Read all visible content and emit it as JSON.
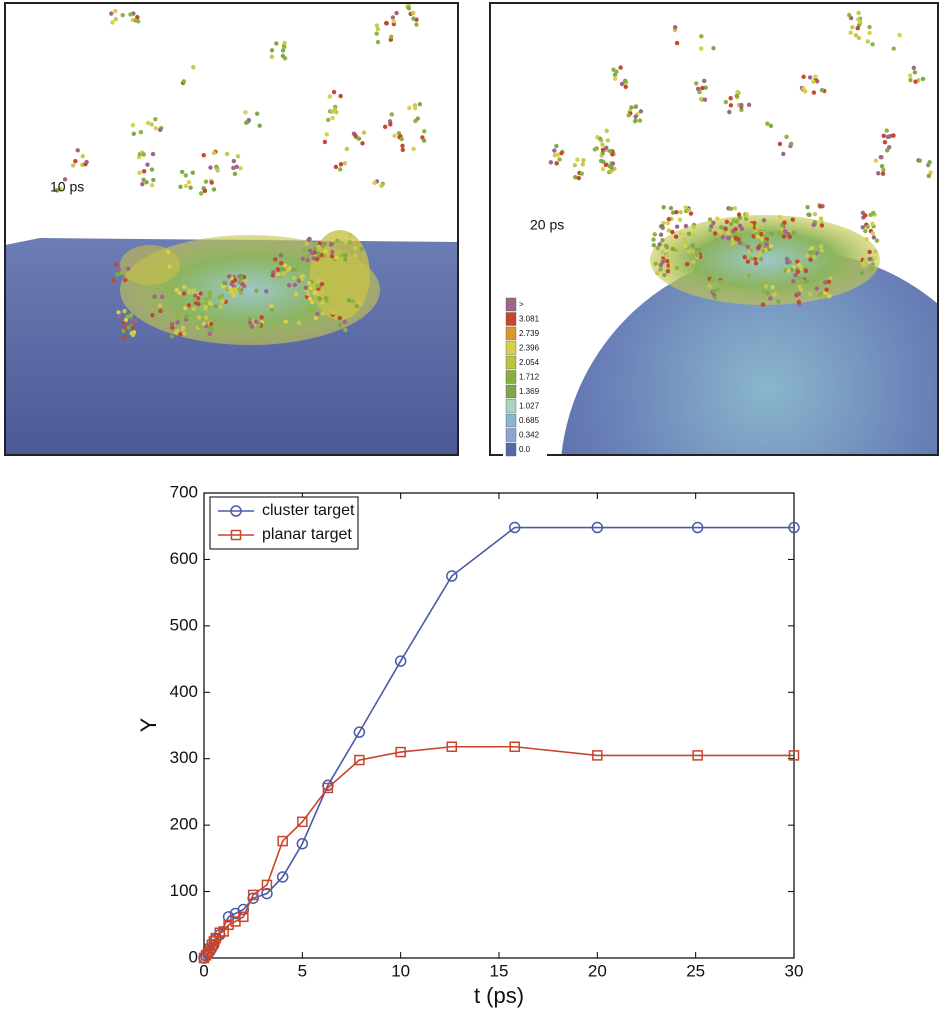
{
  "panels": [
    {
      "label": "10 ps"
    },
    {
      "label": "20 ps",
      "colorbar": {
        "labels": [
          ">",
          "3.081",
          "2.739",
          "2.396",
          "2.054",
          "1.712",
          "1.369",
          "1.027",
          "0.685",
          "0.342",
          "0.0"
        ],
        "colors": [
          "#a0668a",
          "#c2482e",
          "#d99a2a",
          "#d8cf4c",
          "#b8c43c",
          "#88b040",
          "#7fa84a",
          "#a8d4c0",
          "#86b6d2",
          "#8aa6d2",
          "#5668a8"
        ]
      }
    }
  ],
  "chart_data": {
    "type": "line",
    "xlabel": "t (ps)",
    "ylabel": "Y",
    "xlim": [
      0,
      30
    ],
    "ylim": [
      0,
      700
    ],
    "xticks": [
      0,
      5,
      10,
      15,
      20,
      25,
      30
    ],
    "yticks": [
      0,
      100,
      200,
      300,
      400,
      500,
      600,
      700
    ],
    "legend": "upper left",
    "series": [
      {
        "name": "cluster target",
        "color": "#4a5aa8",
        "marker": "circle",
        "x": [
          0,
          0.1,
          0.2,
          0.3,
          0.4,
          0.5,
          0.6,
          0.8,
          1.25,
          1.6,
          2,
          2.5,
          3.2,
          4,
          5,
          6.3,
          7.9,
          10,
          12.6,
          15.8,
          20,
          25.1,
          30
        ],
        "values": [
          0,
          3,
          6,
          10,
          15,
          20,
          28,
          35,
          62,
          67,
          73,
          90,
          97,
          122,
          172,
          260,
          340,
          447,
          575,
          648,
          648,
          648,
          648
        ]
      },
      {
        "name": "planar target",
        "color": "#c8452c",
        "marker": "square",
        "x": [
          0,
          0.1,
          0.2,
          0.3,
          0.4,
          0.5,
          0.6,
          0.8,
          1,
          1.25,
          1.6,
          2,
          2.5,
          3.2,
          4,
          5,
          6.3,
          7.9,
          10,
          12.6,
          15.8,
          20,
          25.1,
          30
        ],
        "values": [
          0,
          4,
          8,
          14,
          20,
          25,
          30,
          38,
          40,
          50,
          55,
          62,
          95,
          110,
          176,
          205,
          256,
          298,
          310,
          318,
          318,
          305,
          305,
          305
        ]
      }
    ]
  }
}
